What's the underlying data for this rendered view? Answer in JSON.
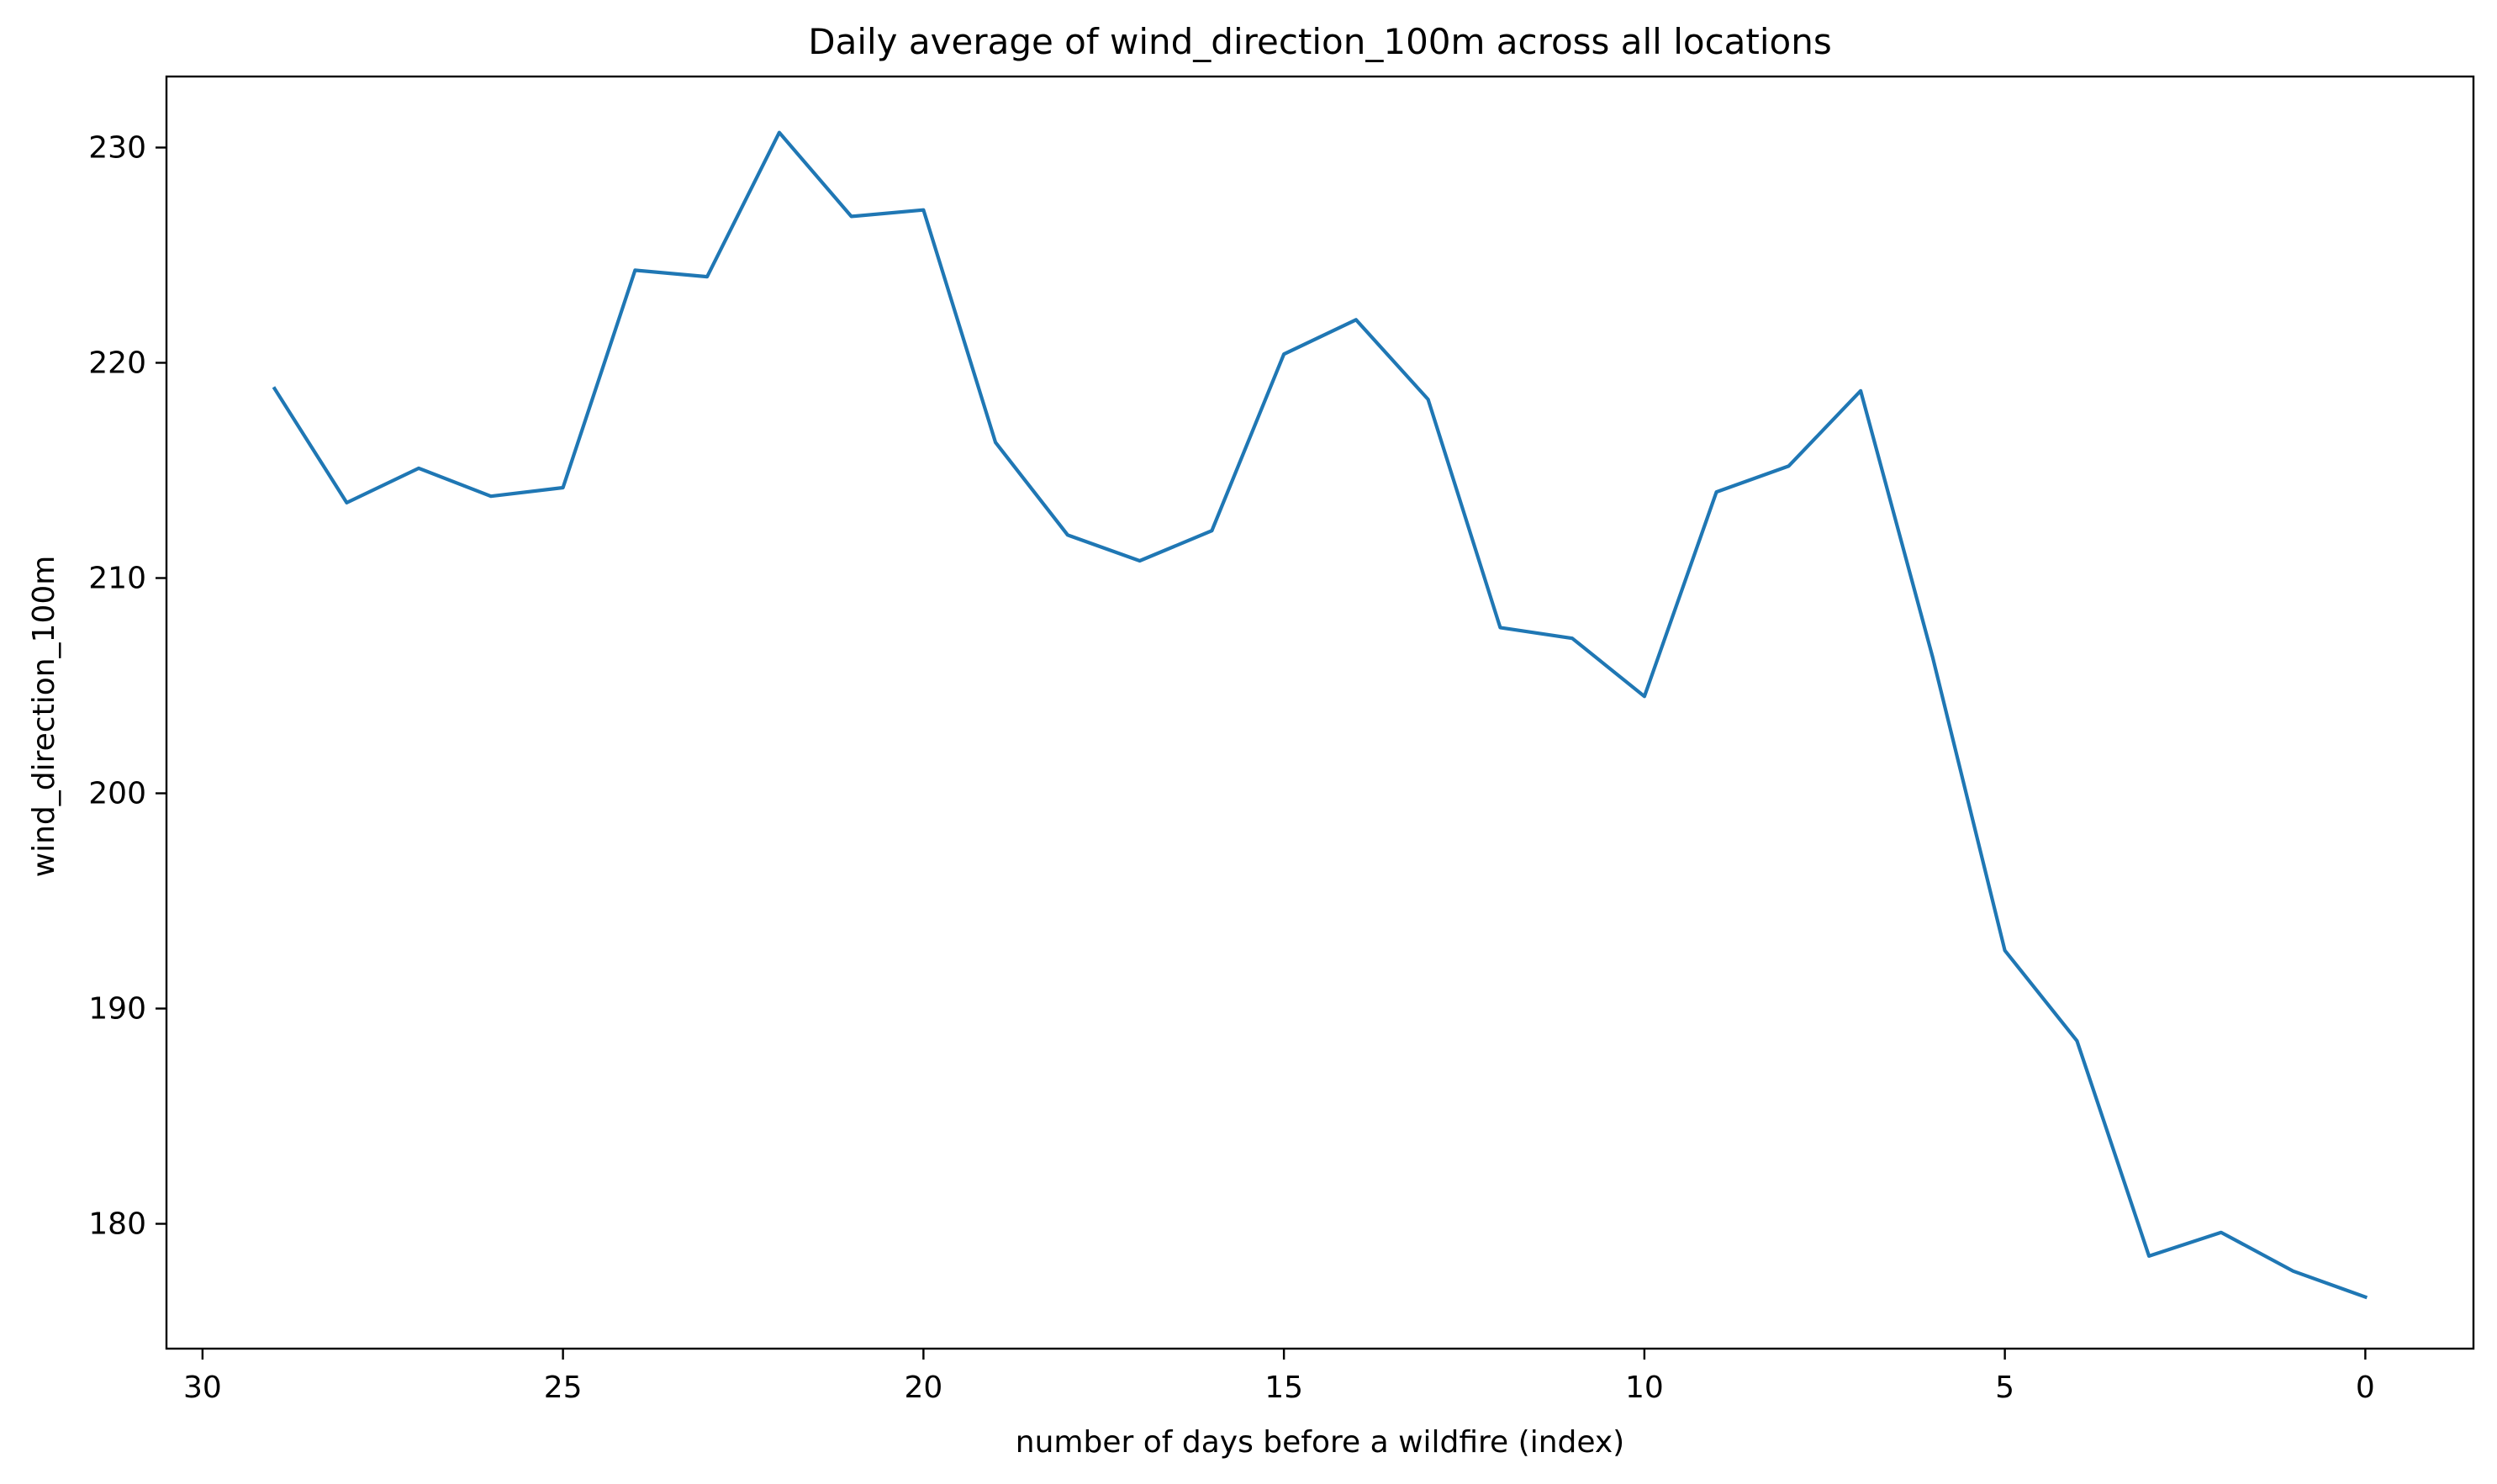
{
  "chart_data": {
    "type": "line",
    "title": "Daily average of wind_direction_100m across all locations",
    "xlabel": "number of days before a wildfire (index)",
    "ylabel": "wind_direction_100m",
    "x_inverted": true,
    "xlim": [
      30.5,
      -1.5
    ],
    "ylim": [
      174.2,
      233.3
    ],
    "xticks": [
      30,
      25,
      20,
      15,
      10,
      5,
      0
    ],
    "yticks": [
      180,
      190,
      200,
      210,
      220,
      230
    ],
    "grid": false,
    "series": [
      {
        "color": "#1f77b4",
        "x": [
          29,
          28,
          27,
          26,
          25,
          24,
          23,
          22,
          21,
          20,
          19,
          18,
          17,
          16,
          15,
          14,
          13,
          12,
          11,
          10,
          9,
          8,
          7,
          6,
          5,
          4,
          3,
          2,
          1,
          0
        ],
        "y": [
          218.8,
          213.5,
          215.1,
          213.8,
          214.2,
          224.3,
          224.0,
          230.7,
          226.8,
          227.1,
          216.3,
          212.0,
          210.8,
          212.2,
          220.4,
          222.0,
          218.3,
          207.7,
          207.2,
          204.5,
          214.0,
          215.2,
          218.7,
          206.3,
          192.7,
          188.5,
          178.5,
          179.6,
          177.8,
          176.6
        ]
      }
    ]
  }
}
